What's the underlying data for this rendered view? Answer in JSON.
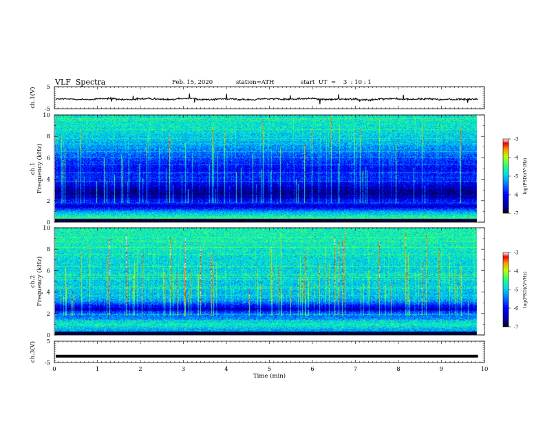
{
  "header": {
    "title": "VLF  Spectra",
    "date": "Feb. 15, 2020",
    "station": "station=ATH",
    "start_ut": "start  UT  =    3  : 10 : 1"
  },
  "chart_data": [
    {
      "type": "line",
      "panel": "ch1-waveform",
      "ylabel": "ch.1(V)",
      "ylim": [
        -5,
        5
      ],
      "yticks": [
        "5",
        "-5"
      ],
      "xlim": [
        0,
        10
      ],
      "level": [
        -0.6,
        -0.8,
        -0.4,
        -0.9,
        -0.5,
        -0.7,
        -0.3,
        -0.8,
        -0.6,
        -0.9,
        -0.5,
        -0.7,
        -0.4,
        -0.8,
        -0.6,
        -0.9,
        -0.5,
        -0.7,
        -0.6,
        -0.8,
        -0.7,
        -0.9
      ]
    },
    {
      "type": "heatmap",
      "panel": "ch1-spectrogram",
      "ylabel": "ch.1\nFrequency  (kHz)",
      "ylim": [
        0,
        10
      ],
      "yticks": [
        "0",
        "2",
        "4",
        "6",
        "8",
        "10"
      ],
      "xlim": [
        0,
        10
      ],
      "data_end_min": 9.8,
      "colorbar": {
        "label": "log(PSD)(V²/Hz)",
        "ticks": [
          "-3",
          "-4",
          "-5",
          "-6",
          "-7"
        ],
        "range": [
          -7,
          -3
        ]
      },
      "band_profile": [
        {
          "f": 0.0,
          "v": -3.9
        },
        {
          "f": 0.5,
          "v": -4.6
        },
        {
          "f": 1.0,
          "v": -5.2
        },
        {
          "f": 1.5,
          "v": -6.3
        },
        {
          "f": 2.0,
          "v": -6.0
        },
        {
          "f": 2.5,
          "v": -6.7
        },
        {
          "f": 3.0,
          "v": -6.6
        },
        {
          "f": 3.5,
          "v": -6.3
        },
        {
          "f": 4.0,
          "v": -5.9
        },
        {
          "f": 5.0,
          "v": -6.1
        },
        {
          "f": 6.0,
          "v": -5.7
        },
        {
          "f": 7.0,
          "v": -5.3
        },
        {
          "f": 8.0,
          "v": -5.0
        },
        {
          "f": 9.0,
          "v": -4.8
        },
        {
          "f": 10.0,
          "v": -4.8
        }
      ]
    },
    {
      "type": "heatmap",
      "panel": "ch2-spectrogram",
      "ylabel": "ch.2\nFrequency  (kHz)",
      "ylim": [
        0,
        10
      ],
      "yticks": [
        "0",
        "2",
        "4",
        "6",
        "8",
        "10"
      ],
      "xlim": [
        0,
        10
      ],
      "data_end_min": 9.8,
      "colorbar": {
        "label": "log(PSD)(V²/Hz)",
        "ticks": [
          "-3",
          "-4",
          "-5",
          "-6",
          "-7"
        ],
        "range": [
          -7,
          -3
        ]
      },
      "band_profile": [
        {
          "f": 0.0,
          "v": -5.0
        },
        {
          "f": 0.5,
          "v": -5.2
        },
        {
          "f": 1.0,
          "v": -4.7
        },
        {
          "f": 1.5,
          "v": -5.3
        },
        {
          "f": 2.0,
          "v": -5.6
        },
        {
          "f": 2.5,
          "v": -6.5
        },
        {
          "f": 3.0,
          "v": -5.6
        },
        {
          "f": 3.5,
          "v": -5.1
        },
        {
          "f": 4.0,
          "v": -5.1
        },
        {
          "f": 5.0,
          "v": -5.0
        },
        {
          "f": 6.0,
          "v": -4.95
        },
        {
          "f": 7.0,
          "v": -4.9
        },
        {
          "f": 8.0,
          "v": -4.8
        },
        {
          "f": 9.0,
          "v": -4.7
        },
        {
          "f": 10.0,
          "v": -4.7
        }
      ]
    },
    {
      "type": "line",
      "panel": "ch3-waveform",
      "ylabel": "ch.3(V)",
      "ylim": [
        -5,
        5
      ],
      "yticks": [
        "5",
        "-5"
      ],
      "xlim": [
        0,
        10
      ],
      "level": [
        -2.0
      ],
      "xlabel": "Time  (min)",
      "xticks": [
        "0",
        "1",
        "2",
        "3",
        "4",
        "5",
        "6",
        "7",
        "8",
        "9",
        "10"
      ]
    }
  ]
}
